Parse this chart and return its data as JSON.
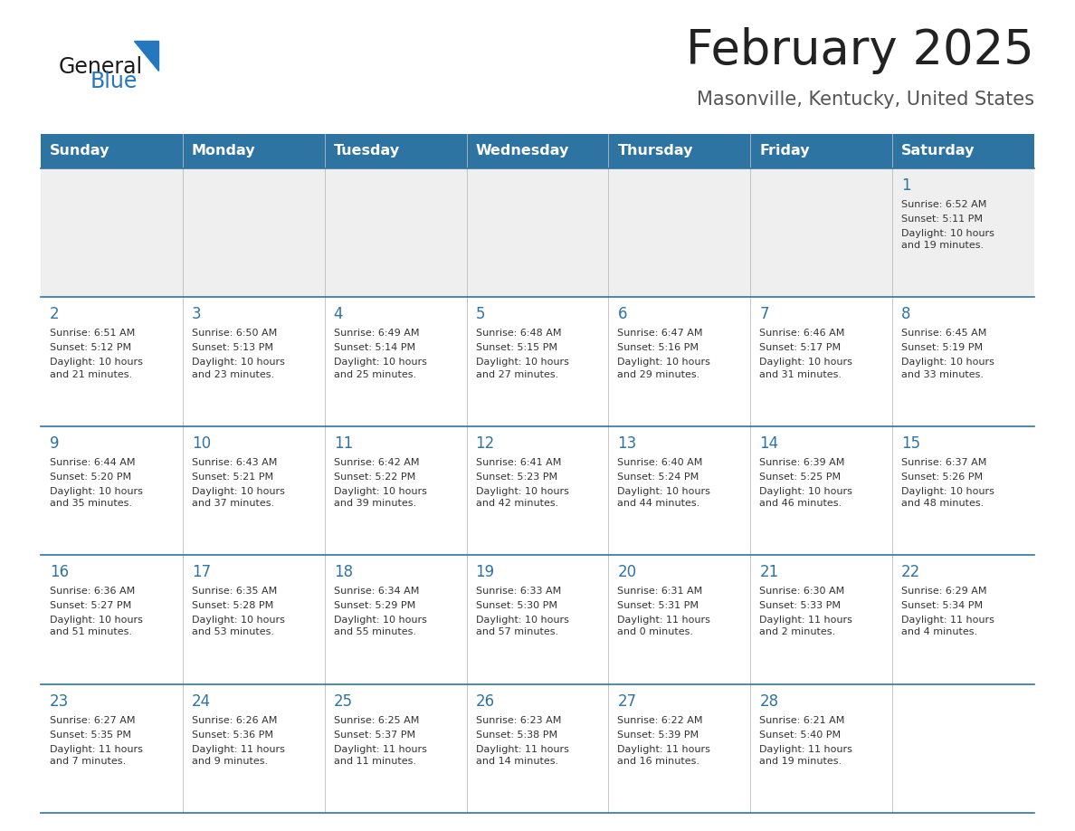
{
  "title": "February 2025",
  "subtitle": "Masonville, Kentucky, United States",
  "header_bg": "#2E74A3",
  "header_text_color": "#FFFFFF",
  "row_bg_week1": "#EFEFEF",
  "row_bg_other": "#FFFFFF",
  "day_headers": [
    "Sunday",
    "Monday",
    "Tuesday",
    "Wednesday",
    "Thursday",
    "Friday",
    "Saturday"
  ],
  "title_color": "#222222",
  "subtitle_color": "#555555",
  "cell_text_color": "#333333",
  "day_num_color": "#2E74A3",
  "divider_color": "#2E74A3",
  "logo_general_color": "#1A1A1A",
  "logo_blue_color": "#2578BE",
  "weeks": [
    [
      {
        "day": null,
        "sunrise": null,
        "sunset": null,
        "daylight": null
      },
      {
        "day": null,
        "sunrise": null,
        "sunset": null,
        "daylight": null
      },
      {
        "day": null,
        "sunrise": null,
        "sunset": null,
        "daylight": null
      },
      {
        "day": null,
        "sunrise": null,
        "sunset": null,
        "daylight": null
      },
      {
        "day": null,
        "sunrise": null,
        "sunset": null,
        "daylight": null
      },
      {
        "day": null,
        "sunrise": null,
        "sunset": null,
        "daylight": null
      },
      {
        "day": 1,
        "sunrise": "6:52 AM",
        "sunset": "5:11 PM",
        "daylight": "10 hours\nand 19 minutes."
      }
    ],
    [
      {
        "day": 2,
        "sunrise": "6:51 AM",
        "sunset": "5:12 PM",
        "daylight": "10 hours\nand 21 minutes."
      },
      {
        "day": 3,
        "sunrise": "6:50 AM",
        "sunset": "5:13 PM",
        "daylight": "10 hours\nand 23 minutes."
      },
      {
        "day": 4,
        "sunrise": "6:49 AM",
        "sunset": "5:14 PM",
        "daylight": "10 hours\nand 25 minutes."
      },
      {
        "day": 5,
        "sunrise": "6:48 AM",
        "sunset": "5:15 PM",
        "daylight": "10 hours\nand 27 minutes."
      },
      {
        "day": 6,
        "sunrise": "6:47 AM",
        "sunset": "5:16 PM",
        "daylight": "10 hours\nand 29 minutes."
      },
      {
        "day": 7,
        "sunrise": "6:46 AM",
        "sunset": "5:17 PM",
        "daylight": "10 hours\nand 31 minutes."
      },
      {
        "day": 8,
        "sunrise": "6:45 AM",
        "sunset": "5:19 PM",
        "daylight": "10 hours\nand 33 minutes."
      }
    ],
    [
      {
        "day": 9,
        "sunrise": "6:44 AM",
        "sunset": "5:20 PM",
        "daylight": "10 hours\nand 35 minutes."
      },
      {
        "day": 10,
        "sunrise": "6:43 AM",
        "sunset": "5:21 PM",
        "daylight": "10 hours\nand 37 minutes."
      },
      {
        "day": 11,
        "sunrise": "6:42 AM",
        "sunset": "5:22 PM",
        "daylight": "10 hours\nand 39 minutes."
      },
      {
        "day": 12,
        "sunrise": "6:41 AM",
        "sunset": "5:23 PM",
        "daylight": "10 hours\nand 42 minutes."
      },
      {
        "day": 13,
        "sunrise": "6:40 AM",
        "sunset": "5:24 PM",
        "daylight": "10 hours\nand 44 minutes."
      },
      {
        "day": 14,
        "sunrise": "6:39 AM",
        "sunset": "5:25 PM",
        "daylight": "10 hours\nand 46 minutes."
      },
      {
        "day": 15,
        "sunrise": "6:37 AM",
        "sunset": "5:26 PM",
        "daylight": "10 hours\nand 48 minutes."
      }
    ],
    [
      {
        "day": 16,
        "sunrise": "6:36 AM",
        "sunset": "5:27 PM",
        "daylight": "10 hours\nand 51 minutes."
      },
      {
        "day": 17,
        "sunrise": "6:35 AM",
        "sunset": "5:28 PM",
        "daylight": "10 hours\nand 53 minutes."
      },
      {
        "day": 18,
        "sunrise": "6:34 AM",
        "sunset": "5:29 PM",
        "daylight": "10 hours\nand 55 minutes."
      },
      {
        "day": 19,
        "sunrise": "6:33 AM",
        "sunset": "5:30 PM",
        "daylight": "10 hours\nand 57 minutes."
      },
      {
        "day": 20,
        "sunrise": "6:31 AM",
        "sunset": "5:31 PM",
        "daylight": "11 hours\nand 0 minutes."
      },
      {
        "day": 21,
        "sunrise": "6:30 AM",
        "sunset": "5:33 PM",
        "daylight": "11 hours\nand 2 minutes."
      },
      {
        "day": 22,
        "sunrise": "6:29 AM",
        "sunset": "5:34 PM",
        "daylight": "11 hours\nand 4 minutes."
      }
    ],
    [
      {
        "day": 23,
        "sunrise": "6:27 AM",
        "sunset": "5:35 PM",
        "daylight": "11 hours\nand 7 minutes."
      },
      {
        "day": 24,
        "sunrise": "6:26 AM",
        "sunset": "5:36 PM",
        "daylight": "11 hours\nand 9 minutes."
      },
      {
        "day": 25,
        "sunrise": "6:25 AM",
        "sunset": "5:37 PM",
        "daylight": "11 hours\nand 11 minutes."
      },
      {
        "day": 26,
        "sunrise": "6:23 AM",
        "sunset": "5:38 PM",
        "daylight": "11 hours\nand 14 minutes."
      },
      {
        "day": 27,
        "sunrise": "6:22 AM",
        "sunset": "5:39 PM",
        "daylight": "11 hours\nand 16 minutes."
      },
      {
        "day": 28,
        "sunrise": "6:21 AM",
        "sunset": "5:40 PM",
        "daylight": "11 hours\nand 19 minutes."
      },
      {
        "day": null,
        "sunrise": null,
        "sunset": null,
        "daylight": null
      }
    ]
  ]
}
